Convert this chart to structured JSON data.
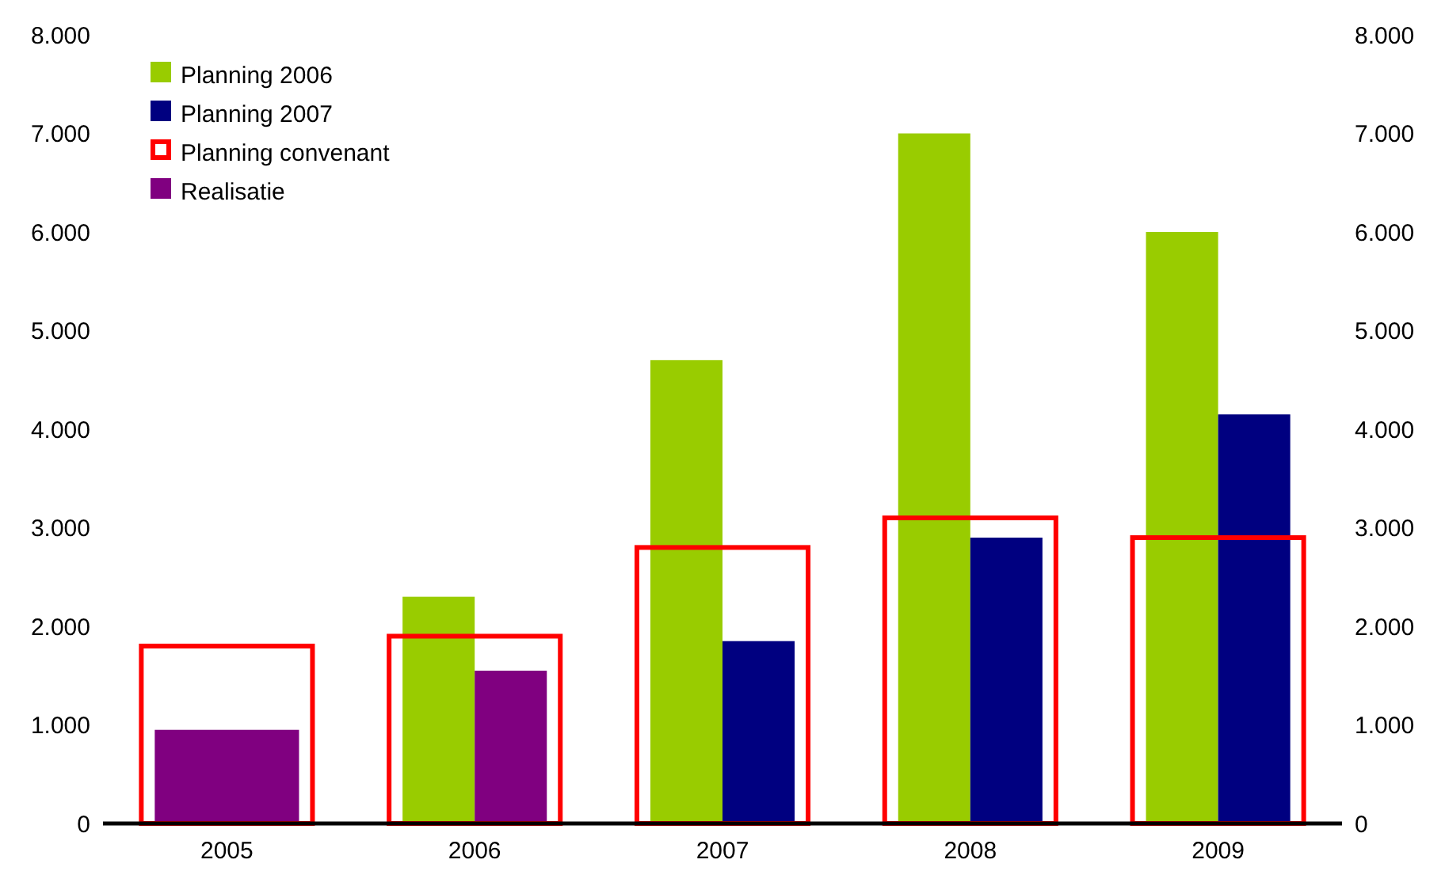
{
  "chart_data": {
    "type": "bar",
    "categories": [
      "2005",
      "2006",
      "2007",
      "2008",
      "2009"
    ],
    "series": [
      {
        "name": "Planning 2006",
        "color": "#99cc00",
        "values": [
          null,
          2300,
          4700,
          7000,
          6000
        ]
      },
      {
        "name": "Planning 2007",
        "color": "#000080",
        "values": [
          null,
          null,
          1850,
          2900,
          4150
        ]
      },
      {
        "name": "Planning convenant",
        "color": "#ff0000",
        "line_style": "solid",
        "values": [
          1800,
          1900,
          2800,
          3100,
          2900
        ]
      },
      {
        "name": "Realisatie",
        "color": "#800080",
        "values": [
          950,
          1550,
          null,
          null,
          null
        ]
      }
    ],
    "ylim": [
      0,
      8000
    ],
    "yticks": [
      {
        "value": 0,
        "label": "0"
      },
      {
        "value": 1000,
        "label": "1.000"
      },
      {
        "value": 2000,
        "label": "2.000"
      },
      {
        "value": 3000,
        "label": "3.000"
      },
      {
        "value": 4000,
        "label": "4.000"
      },
      {
        "value": 5000,
        "label": "5.000"
      },
      {
        "value": 6000,
        "label": "6.000"
      },
      {
        "value": 7000,
        "label": "7.000"
      },
      {
        "value": 8000,
        "label": "8.000"
      }
    ],
    "y2lim": [
      0,
      8000
    ],
    "y2ticks": [
      {
        "value": 0,
        "label": "0"
      },
      {
        "value": 1000,
        "label": "1.000"
      },
      {
        "value": 2000,
        "label": "2.000"
      },
      {
        "value": 3000,
        "label": "3.000"
      },
      {
        "value": 4000,
        "label": "4.000"
      },
      {
        "value": 5000,
        "label": "5.000"
      },
      {
        "value": 6000,
        "label": "6.000"
      },
      {
        "value": 7000,
        "label": "7.000"
      },
      {
        "value": 8000,
        "label": "8.000"
      }
    ],
    "grid": false,
    "legend": "top left"
  }
}
